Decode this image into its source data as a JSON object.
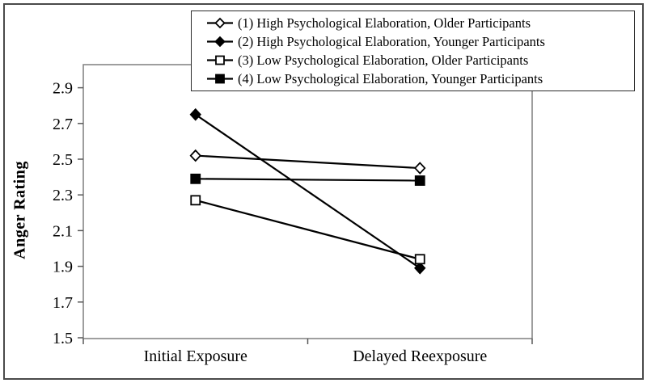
{
  "chart_data": {
    "type": "line",
    "title": "",
    "xlabel": "",
    "ylabel": "Anger Rating",
    "categories": [
      "Initial Exposure",
      "Delayed Reexposure"
    ],
    "series": [
      {
        "name": "(1) High Psychological Elaboration, Older Participants",
        "marker": "diamond-open",
        "values": [
          2.52,
          2.45
        ]
      },
      {
        "name": "(2) High Psychological Elaboration, Younger Participants",
        "marker": "diamond-filled",
        "values": [
          2.75,
          1.89
        ]
      },
      {
        "name": "(3) Low Psychological Elaboration, Older Participants",
        "marker": "square-open",
        "values": [
          2.27,
          1.94
        ]
      },
      {
        "name": "(4) Low Psychological Elaboration, Younger Participants",
        "marker": "square-filled",
        "values": [
          2.39,
          2.38
        ]
      }
    ],
    "ylim": [
      1.5,
      2.9
    ],
    "yticks": [
      1.5,
      1.7,
      1.9,
      2.1,
      2.3,
      2.5,
      2.7,
      2.9
    ],
    "grid": false,
    "legend_position": "top",
    "line_color": "#000000",
    "frame_color": "#7f7f7f",
    "tick_color": "#595959"
  }
}
